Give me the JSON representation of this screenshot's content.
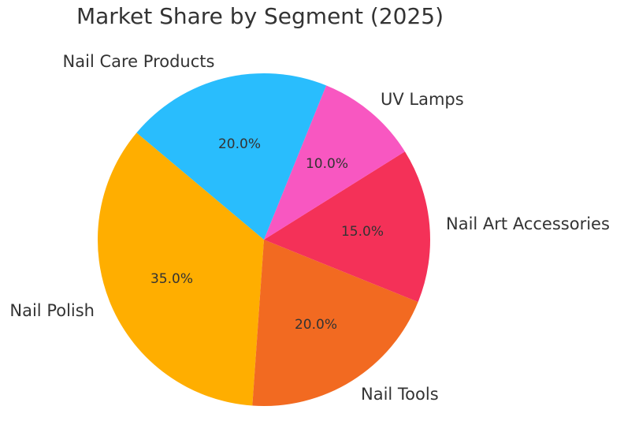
{
  "chart_data": {
    "type": "pie",
    "title": "Market Share by Segment (2025)",
    "categories": [
      "Nail Polish",
      "Nail Tools",
      "Nail Art Accessories",
      "UV Lamps",
      "Nail Care Products"
    ],
    "values": [
      35.0,
      20.0,
      15.0,
      10.0,
      20.0
    ],
    "labels_pct": [
      "35.0%",
      "20.0%",
      "15.0%",
      "10.0%",
      "20.0%"
    ],
    "colors": [
      "#FFAE00",
      "#F26A21",
      "#F43158",
      "#F857C1",
      "#29BDFD"
    ],
    "start_angle": 140,
    "direction": "counterclockwise",
    "legend": "none"
  },
  "title": "Market Share by Segment (2025)",
  "slices": [
    {
      "label": "Nail Polish",
      "pct": "35.0%",
      "color": "#FFAE00"
    },
    {
      "label": "Nail Tools",
      "pct": "20.0%",
      "color": "#F26A21"
    },
    {
      "label": "Nail Art Accessories",
      "pct": "15.0%",
      "color": "#F43158"
    },
    {
      "label": "UV Lamps",
      "pct": "10.0%",
      "color": "#F857C1"
    },
    {
      "label": "Nail Care Products",
      "pct": "20.0%",
      "color": "#29BDFD"
    }
  ]
}
